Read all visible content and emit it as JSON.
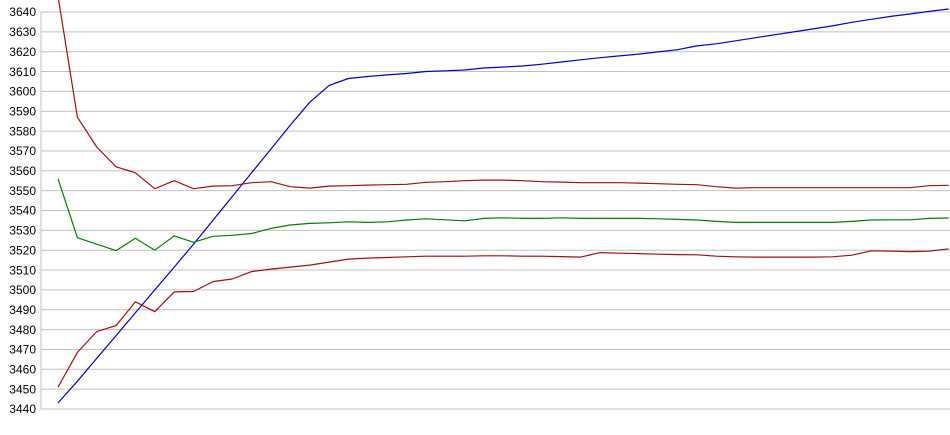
{
  "chart_data": {
    "type": "line",
    "title": "",
    "xlabel": "",
    "ylabel": "",
    "x_tick_labels_visible": false,
    "x_count": 47,
    "ylim": [
      3440,
      3640
    ],
    "ytick_step": 10,
    "ytick_labels": [
      "3640",
      "3630",
      "3620",
      "3610",
      "3600",
      "3590",
      "3580",
      "3570",
      "3560",
      "3550",
      "3540",
      "3530",
      "3520",
      "3510",
      "3500",
      "3490",
      "3480",
      "3470",
      "3460",
      "3450",
      "3440"
    ],
    "grid": "horizontal",
    "legend": "none",
    "colors": {
      "background": "#ffffff",
      "gridline": "#c0c0c0",
      "axis": "#c0c0c0",
      "tick_label": "#000000"
    },
    "series": [
      {
        "name": "line-blue",
        "color": "#0000cc",
        "values": [
          3443,
          3454,
          3465.5,
          3477,
          3488.5,
          3500,
          3511.5,
          3523,
          3535,
          3547,
          3559,
          3571,
          3583,
          3594.5,
          3603,
          3606.5,
          3607.5,
          3608.3,
          3609,
          3610,
          3610.4,
          3610.8,
          3611.8,
          3612.3,
          3612.8,
          3613.7,
          3614.8,
          3615.9,
          3617,
          3617.9,
          3618.8,
          3619.9,
          3621,
          3622.9,
          3624,
          3625.5,
          3627,
          3628.5,
          3630,
          3631.5,
          3633,
          3634.8,
          3636.3,
          3637.8,
          3639,
          3640.3,
          3641.5
        ]
      },
      {
        "name": "line-green",
        "color": "#008000",
        "values": [
          3556,
          3526.3,
          3523,
          3519.8,
          3526,
          3520,
          3527.2,
          3524,
          3527,
          3527.5,
          3528.4,
          3531,
          3532.7,
          3533.5,
          3533.8,
          3534.3,
          3534,
          3534.3,
          3535.2,
          3535.8,
          3535.3,
          3534.8,
          3536,
          3536.3,
          3536,
          3536,
          3536.3,
          3536,
          3536,
          3536,
          3536,
          3535.8,
          3535.5,
          3535.2,
          3534.5,
          3534,
          3534,
          3534,
          3534,
          3534,
          3534,
          3534.5,
          3535.2,
          3535.3,
          3535.3,
          3536,
          3536.2
        ]
      },
      {
        "name": "line-red-upper",
        "color": "#a50d0d",
        "values": [
          3648,
          3587,
          3572,
          3562,
          3559,
          3551,
          3555,
          3551,
          3552.3,
          3552.5,
          3554,
          3554.5,
          3552,
          3551.3,
          3552.3,
          3552.5,
          3552.8,
          3553,
          3553.2,
          3554.2,
          3554.5,
          3555,
          3555.3,
          3555.3,
          3555,
          3554.5,
          3554.3,
          3554,
          3554,
          3554,
          3553.8,
          3553.5,
          3553.2,
          3553,
          3552,
          3551.3,
          3551.5,
          3551.5,
          3551.5,
          3551.5,
          3551.5,
          3551.5,
          3551.5,
          3551.5,
          3551.5,
          3552.5,
          3552.7
        ]
      },
      {
        "name": "line-red-lower",
        "color": "#a50d0d",
        "values": [
          3451,
          3468.5,
          3479,
          3482,
          3494,
          3489,
          3499,
          3499.2,
          3504.2,
          3505.5,
          3509.2,
          3510.5,
          3511.5,
          3512.5,
          3514,
          3515.5,
          3516,
          3516.3,
          3516.7,
          3517,
          3517,
          3517,
          3517.2,
          3517.2,
          3517,
          3517,
          3516.8,
          3516.5,
          3518.8,
          3518.5,
          3518.3,
          3518,
          3517.8,
          3517.7,
          3517,
          3516.7,
          3516.5,
          3516.5,
          3516.5,
          3516.5,
          3516.7,
          3517.5,
          3519.7,
          3519.5,
          3519.3,
          3519.5,
          3520.7
        ]
      }
    ]
  }
}
